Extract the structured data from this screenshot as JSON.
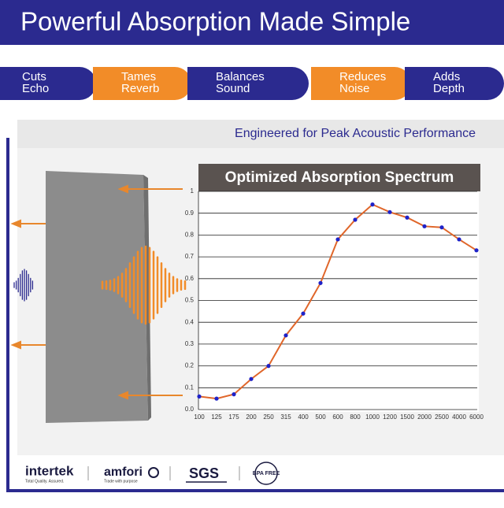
{
  "header": {
    "title": "Powerful Absorption Made Simple"
  },
  "features": [
    {
      "lines": [
        "Cuts",
        "Echo"
      ],
      "color": "#2b2a8f"
    },
    {
      "lines": [
        "Tames",
        "Reverb"
      ],
      "color": "#f28c28"
    },
    {
      "lines": [
        "Balances",
        "Sound"
      ],
      "color": "#2b2a8f"
    },
    {
      "lines": [
        "Reduces",
        "Noise"
      ],
      "color": "#f28c28"
    },
    {
      "lines": [
        "Adds",
        "Depth"
      ],
      "color": "#2b2a8f"
    }
  ],
  "subtitle": "Engineered for Peak Acoustic Performance",
  "chart_data": {
    "type": "line",
    "title": "Optimized Absorption Spectrum",
    "categories": [
      "100",
      "125",
      "175",
      "200",
      "250",
      "315",
      "400",
      "500",
      "600",
      "800",
      "1000",
      "1200",
      "1500",
      "2000",
      "2500",
      "4000",
      "6000"
    ],
    "series": [
      {
        "color": "#e0662a",
        "marker_color": "#1e22c8",
        "values": [
          0.06,
          0.05,
          0.07,
          0.14,
          0.2,
          0.34,
          0.44,
          0.58,
          0.78,
          0.87,
          0.94,
          0.905,
          0.88,
          0.84,
          0.835,
          0.78,
          0.73
        ]
      }
    ],
    "ylim": [
      0,
      1
    ],
    "yticks": [
      {
        "value": 0,
        "label": "0.0"
      },
      0.1,
      0.2,
      0.3,
      0.4,
      0.5,
      0.6,
      0.7,
      0.8,
      0.9,
      1
    ],
    "grid": true
  },
  "logos": [
    {
      "name": "intertek",
      "tagline": "Total Quality. Assured."
    },
    {
      "name": "amfori",
      "tagline": "Trade with purpose"
    },
    {
      "name": "SGS"
    },
    {
      "name": "BPA FREE"
    }
  ]
}
